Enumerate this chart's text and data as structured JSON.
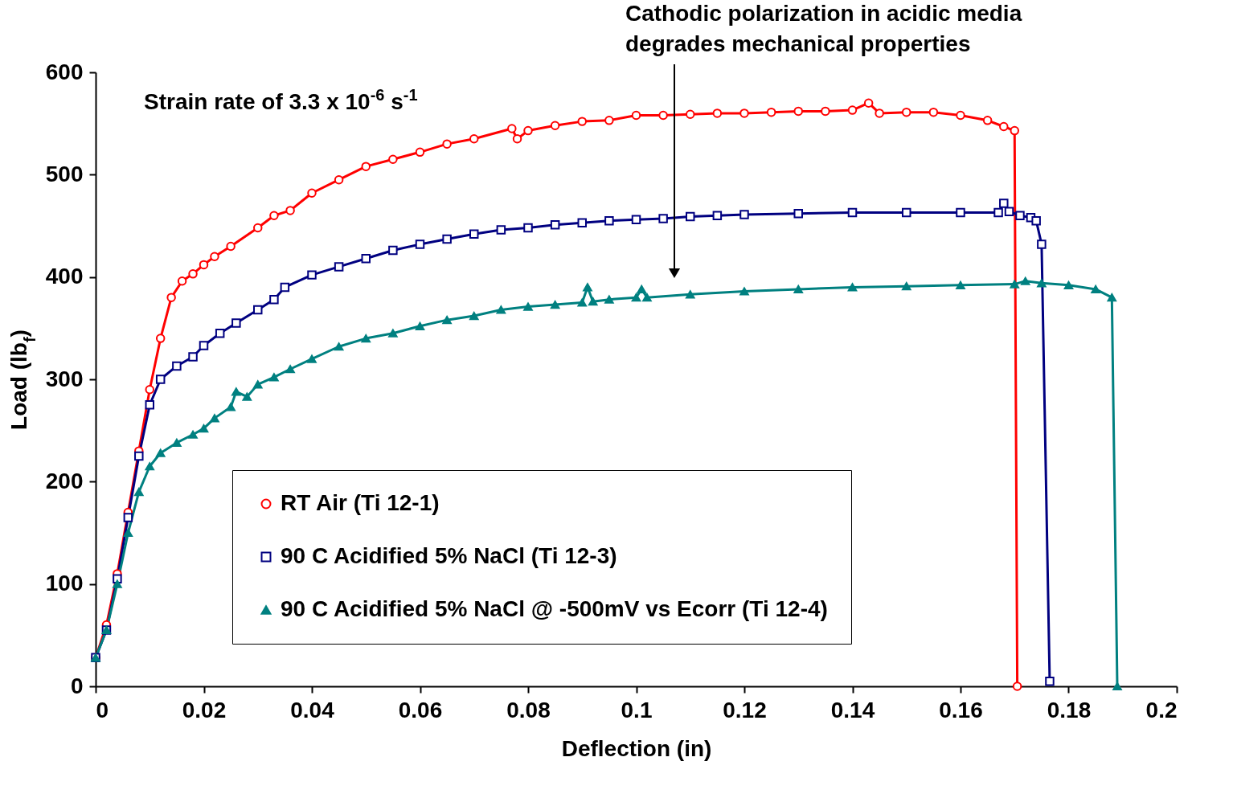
{
  "chart_data": {
    "type": "line",
    "xlabel": "Deflection (in)",
    "ylabel": "Load (lb$_{f}$)",
    "xlim": [
      0,
      0.2
    ],
    "xticks": [
      0,
      0.02,
      0.04,
      0.06,
      0.08,
      0.1,
      0.12,
      0.14,
      0.16,
      0.18,
      0.2
    ],
    "ylim": [
      0,
      600
    ],
    "yticks": [
      0,
      100,
      200,
      300,
      400,
      500,
      600
    ],
    "grid": false,
    "legend": "bottom",
    "line_style": "solid",
    "annotations": [
      "Strain rate of 3.3 x 10$^{-6}$ s$^{-1}$",
      "Cathodic polarization in acidic media\ndegrades mechanical properties"
    ],
    "series": [
      {
        "name": "RT Air (Ti 12-1)",
        "color": "#ff0000",
        "marker": "circle",
        "x": [
          0,
          0.002,
          0.004,
          0.006,
          0.008,
          0.01,
          0.012,
          0.014,
          0.016,
          0.018,
          0.02,
          0.022,
          0.025,
          0.03,
          0.033,
          0.036,
          0.04,
          0.045,
          0.05,
          0.055,
          0.06,
          0.065,
          0.07,
          0.077,
          0.078,
          0.08,
          0.085,
          0.09,
          0.095,
          0.1,
          0.105,
          0.11,
          0.115,
          0.12,
          0.125,
          0.13,
          0.135,
          0.14,
          0.143,
          0.145,
          0.15,
          0.155,
          0.16,
          0.165,
          0.168,
          0.17,
          0.1705
        ],
        "values": [
          28,
          60,
          110,
          170,
          230,
          290,
          340,
          380,
          396,
          403,
          412,
          420,
          430,
          448,
          460,
          465,
          482,
          495,
          508,
          515,
          522,
          530,
          535,
          545,
          535,
          543,
          548,
          552,
          553,
          558,
          558,
          559,
          560,
          560,
          561,
          562,
          562,
          563,
          570,
          560,
          561,
          561,
          558,
          553,
          547,
          543,
          0
        ]
      },
      {
        "name": "90 C Acidified 5% NaCl (Ti 12-3)",
        "color": "#000080",
        "marker": "square",
        "x": [
          0,
          0.002,
          0.004,
          0.006,
          0.008,
          0.01,
          0.012,
          0.015,
          0.018,
          0.02,
          0.023,
          0.026,
          0.03,
          0.033,
          0.035,
          0.04,
          0.045,
          0.05,
          0.055,
          0.06,
          0.065,
          0.07,
          0.075,
          0.08,
          0.085,
          0.09,
          0.095,
          0.1,
          0.105,
          0.11,
          0.115,
          0.12,
          0.13,
          0.14,
          0.15,
          0.16,
          0.167,
          0.168,
          0.169,
          0.171,
          0.173,
          0.174,
          0.175,
          0.1765
        ],
        "values": [
          28,
          55,
          105,
          165,
          225,
          275,
          300,
          313,
          322,
          333,
          345,
          355,
          368,
          378,
          390,
          402,
          410,
          418,
          426,
          432,
          437,
          442,
          446,
          448,
          451,
          453,
          455,
          456,
          457,
          459,
          460,
          461,
          462,
          463,
          463,
          463,
          463,
          472,
          464,
          460,
          458,
          455,
          432,
          5
        ]
      },
      {
        "name": "90 C Acidified 5% NaCl @ -500mV vs Ecorr (Ti 12-4)",
        "color": "#008080",
        "marker": "triangle",
        "x": [
          0,
          0.002,
          0.004,
          0.006,
          0.008,
          0.01,
          0.012,
          0.015,
          0.018,
          0.02,
          0.022,
          0.025,
          0.026,
          0.028,
          0.03,
          0.033,
          0.036,
          0.04,
          0.045,
          0.05,
          0.055,
          0.06,
          0.065,
          0.07,
          0.075,
          0.08,
          0.085,
          0.09,
          0.091,
          0.092,
          0.095,
          0.1,
          0.101,
          0.102,
          0.11,
          0.12,
          0.13,
          0.14,
          0.15,
          0.16,
          0.17,
          0.172,
          0.175,
          0.18,
          0.185,
          0.188,
          0.189
        ],
        "values": [
          28,
          55,
          100,
          150,
          190,
          215,
          228,
          238,
          246,
          252,
          262,
          273,
          288,
          283,
          295,
          302,
          310,
          320,
          332,
          340,
          345,
          352,
          358,
          362,
          368,
          371,
          373,
          375,
          390,
          376,
          378,
          380,
          388,
          380,
          383,
          386,
          388,
          390,
          391,
          392,
          393,
          396,
          394,
          392,
          388,
          380,
          0
        ]
      }
    ]
  }
}
